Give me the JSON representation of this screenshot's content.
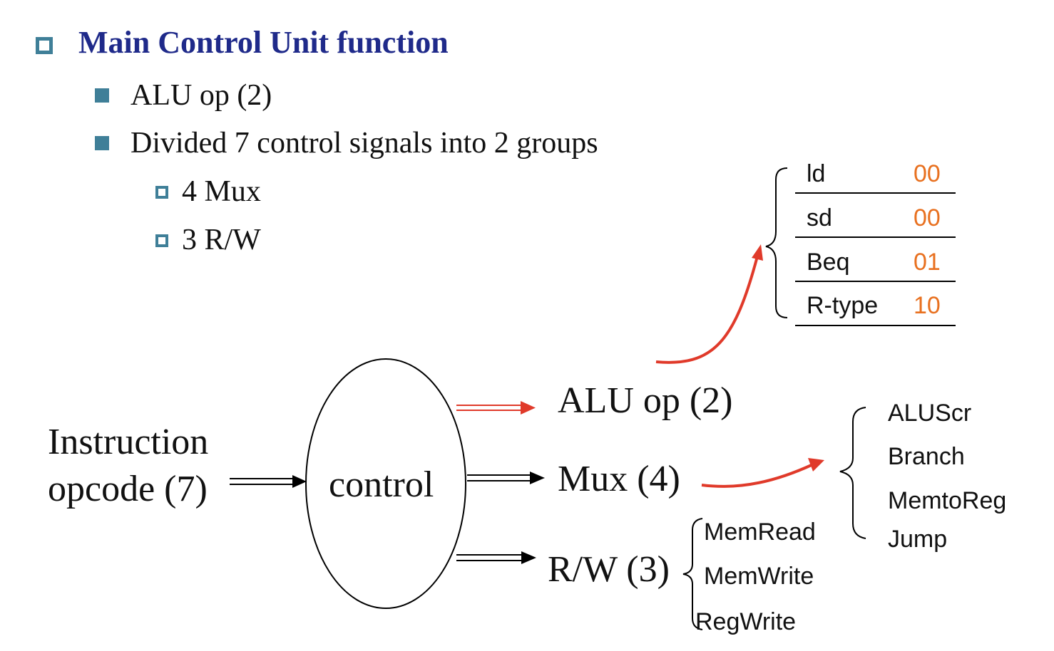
{
  "title": "Main Control Unit function",
  "bullets": {
    "alu_op": "ALU op (2)",
    "divided": "Divided 7 control signals into 2 groups",
    "mux": "4 Mux",
    "rw": "3 R/W"
  },
  "diagram": {
    "input_line1": "Instruction",
    "input_line2": "opcode (7)",
    "control": "control",
    "alu_op": "ALU op (2)",
    "mux": "Mux (4)",
    "rw": "R/W (3)"
  },
  "aluop_table": [
    {
      "instr": "ld",
      "code": "00"
    },
    {
      "instr": "sd",
      "code": "00"
    },
    {
      "instr": "Beq",
      "code": "01"
    },
    {
      "instr": "R-type",
      "code": "10"
    }
  ],
  "mux_signals": [
    "ALUScr",
    "Branch",
    "MemtoReg",
    "Jump"
  ],
  "rw_signals": [
    "MemRead",
    "MemWrite",
    "RegWrite"
  ],
  "colors": {
    "title": "#1f2a8a",
    "bullet": "#3f7f98",
    "arrow_red": "#e03a2a",
    "code_orange": "#e8701f"
  },
  "icons": {
    "level1_bullet": "hollow-square-icon",
    "level2_bullet": "solid-square-icon",
    "level3_bullet": "hollow-square-icon"
  }
}
